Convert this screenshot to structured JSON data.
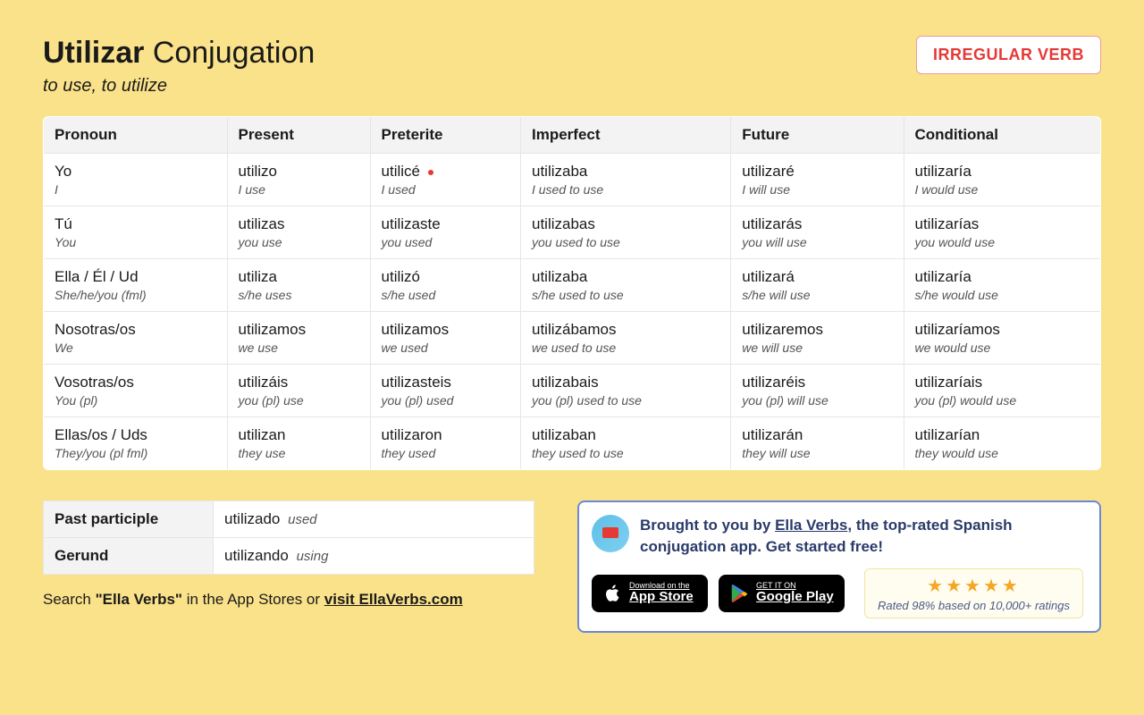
{
  "header": {
    "verb": "Utilizar",
    "title_suffix": "Conjugation",
    "translation": "to use, to utilize",
    "badge": "IRREGULAR VERB"
  },
  "table": {
    "headers": [
      "Pronoun",
      "Present",
      "Preterite",
      "Imperfect",
      "Future",
      "Conditional"
    ],
    "rows": [
      {
        "pronoun": {
          "es": "Yo",
          "en": "I"
        },
        "cells": [
          {
            "es": "utilizo",
            "en": "I use"
          },
          {
            "es": "utilicé",
            "en": "I used",
            "irregular": true
          },
          {
            "es": "utilizaba",
            "en": "I used to use"
          },
          {
            "es": "utilizaré",
            "en": "I will use"
          },
          {
            "es": "utilizaría",
            "en": "I would use"
          }
        ]
      },
      {
        "pronoun": {
          "es": "Tú",
          "en": "You"
        },
        "cells": [
          {
            "es": "utilizas",
            "en": "you use"
          },
          {
            "es": "utilizaste",
            "en": "you used"
          },
          {
            "es": "utilizabas",
            "en": "you used to use"
          },
          {
            "es": "utilizarás",
            "en": "you will use"
          },
          {
            "es": "utilizarías",
            "en": "you would use"
          }
        ]
      },
      {
        "pronoun": {
          "es": "Ella / Él / Ud",
          "en": "She/he/you (fml)"
        },
        "cells": [
          {
            "es": "utiliza",
            "en": "s/he uses"
          },
          {
            "es": "utilizó",
            "en": "s/he used"
          },
          {
            "es": "utilizaba",
            "en": "s/he used to use"
          },
          {
            "es": "utilizará",
            "en": "s/he will use"
          },
          {
            "es": "utilizaría",
            "en": "s/he would use"
          }
        ]
      },
      {
        "pronoun": {
          "es": "Nosotras/os",
          "en": "We"
        },
        "cells": [
          {
            "es": "utilizamos",
            "en": "we use"
          },
          {
            "es": "utilizamos",
            "en": "we used"
          },
          {
            "es": "utilizábamos",
            "en": "we used to use"
          },
          {
            "es": "utilizaremos",
            "en": "we will use"
          },
          {
            "es": "utilizaríamos",
            "en": "we would use"
          }
        ]
      },
      {
        "pronoun": {
          "es": "Vosotras/os",
          "en": "You (pl)"
        },
        "cells": [
          {
            "es": "utilizáis",
            "en": "you (pl) use"
          },
          {
            "es": "utilizasteis",
            "en": "you (pl) used"
          },
          {
            "es": "utilizabais",
            "en": "you (pl) used to use"
          },
          {
            "es": "utilizaréis",
            "en": "you (pl) will use"
          },
          {
            "es": "utilizaríais",
            "en": "you (pl) would use"
          }
        ]
      },
      {
        "pronoun": {
          "es": "Ellas/os / Uds",
          "en": "They/you (pl fml)"
        },
        "cells": [
          {
            "es": "utilizan",
            "en": "they use"
          },
          {
            "es": "utilizaron",
            "en": "they used"
          },
          {
            "es": "utilizaban",
            "en": "they used to use"
          },
          {
            "es": "utilizarán",
            "en": "they will use"
          },
          {
            "es": "utilizarían",
            "en": "they would use"
          }
        ]
      }
    ]
  },
  "forms": [
    {
      "label": "Past participle",
      "es": "utilizado",
      "en": "used"
    },
    {
      "label": "Gerund",
      "es": "utilizando",
      "en": "using"
    }
  ],
  "search_line": {
    "prefix": "Search ",
    "quoted": "\"Ella Verbs\"",
    "middle": " in the App Stores or ",
    "link": "visit EllaVerbs.com"
  },
  "promo": {
    "text_prefix": "Brought to you by ",
    "link": "Ella Verbs",
    "text_suffix": ", the top-rated Spanish conjugation app. Get started free!",
    "app_store": {
      "small": "Download on the",
      "big": "App Store"
    },
    "google_play": {
      "small": "GET IT ON",
      "big": "Google Play"
    },
    "rating_text": "Rated 98% based on 10,000+ ratings"
  }
}
